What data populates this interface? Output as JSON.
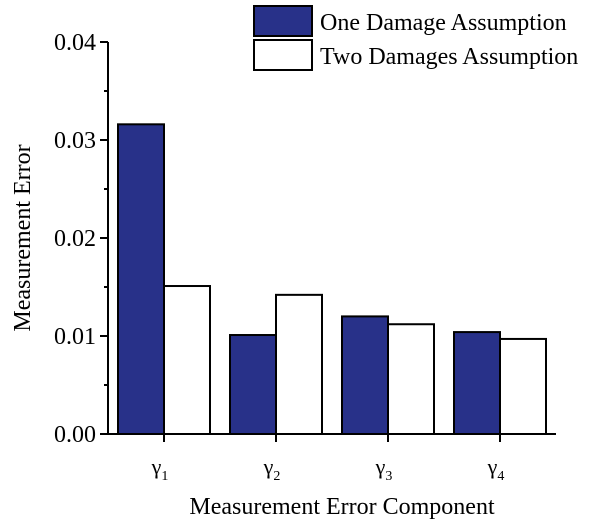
{
  "chart_data": {
    "type": "bar",
    "categories": [
      {
        "base": "γ",
        "sub": "1"
      },
      {
        "base": "γ",
        "sub": "2"
      },
      {
        "base": "γ",
        "sub": "3"
      },
      {
        "base": "γ",
        "sub": "4"
      }
    ],
    "series": [
      {
        "name": "One Damage Assumption",
        "values": [
          0.0316,
          0.0101,
          0.012,
          0.0104
        ],
        "color": "#283189"
      },
      {
        "name": "Two Damages Assumption",
        "values": [
          0.0151,
          0.0142,
          0.0112,
          0.0097
        ],
        "color": "#ffffff"
      }
    ],
    "xlabel": "Measurement Error Component",
    "ylabel": "Measurement Error",
    "ylim": [
      0,
      0.04
    ],
    "yticks": [
      "0.00",
      "0.01",
      "0.02",
      "0.03",
      "0.04"
    ],
    "grid": false,
    "legend_position": "top-right"
  }
}
